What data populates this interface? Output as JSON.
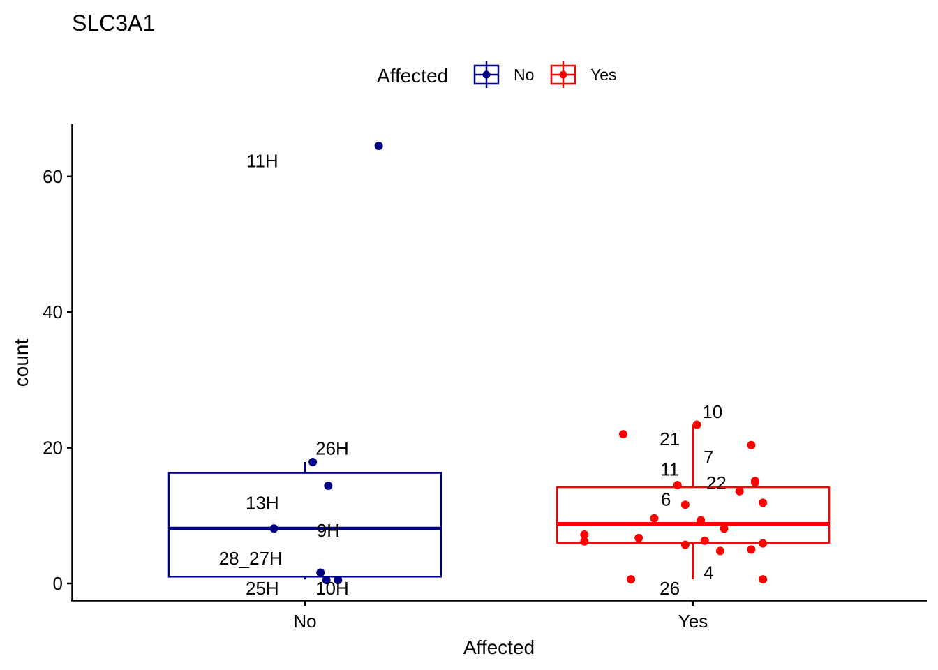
{
  "chart_data": {
    "type": "boxplot",
    "title": "SLC3A1",
    "xlabel": "Affected",
    "ylabel": "count",
    "ylim": [
      -3,
      67.5
    ],
    "yticks": [
      0,
      20,
      40,
      60
    ],
    "categories": [
      "No",
      "Yes"
    ],
    "grid": false,
    "legend": {
      "title": "Affected",
      "position": "top",
      "entries": [
        {
          "label": "No",
          "color": "#000080"
        },
        {
          "label": "Yes",
          "color": "#ff0000"
        }
      ]
    },
    "series": [
      {
        "name": "No",
        "color": "#000080",
        "box": {
          "lower_whisker": 0.6,
          "q1": 1.0,
          "median": 8.1,
          "q3": 16.3,
          "upper_whisker": 17.9
        },
        "points": [
          {
            "x": 1.19,
            "y": 64.5,
            "label": ""
          },
          {
            "x": 1.02,
            "y": 17.9,
            "label": ""
          },
          {
            "x": 1.06,
            "y": 14.4,
            "label": ""
          },
          {
            "x": 0.92,
            "y": 8.1,
            "label": ""
          },
          {
            "x": 1.04,
            "y": 1.6,
            "label": ""
          },
          {
            "x": 1.055,
            "y": 0.5,
            "label": ""
          },
          {
            "x": 1.085,
            "y": 0.5,
            "label": ""
          }
        ],
        "text_labels": [
          {
            "text": "11H",
            "x": 0.89,
            "y": 62.3
          },
          {
            "text": "26H",
            "x": 1.07,
            "y": 19.9
          },
          {
            "text": "13H",
            "x": 0.89,
            "y": 11.9
          },
          {
            "text": "9H",
            "x": 1.06,
            "y": 7.8
          },
          {
            "text": "28_27H",
            "x": 0.86,
            "y": 3.7
          },
          {
            "text": "25H",
            "x": 0.89,
            "y": -0.7
          },
          {
            "text": "10H",
            "x": 1.07,
            "y": -0.7
          }
        ]
      },
      {
        "name": "Yes",
        "color": "#ff0000",
        "box": {
          "lower_whisker": 0.6,
          "q1": 6.0,
          "median": 8.8,
          "q3": 14.2,
          "upper_whisker": 23.4
        },
        "points": [
          {
            "x": 2.01,
            "y": 23.4
          },
          {
            "x": 1.82,
            "y": 22.0
          },
          {
            "x": 2.15,
            "y": 20.4
          },
          {
            "x": 2.16,
            "y": 15.1
          },
          {
            "x": 2.16,
            "y": 14.9
          },
          {
            "x": 1.96,
            "y": 14.5
          },
          {
            "x": 2.12,
            "y": 13.6
          },
          {
            "x": 2.18,
            "y": 11.9
          },
          {
            "x": 1.98,
            "y": 11.6
          },
          {
            "x": 1.9,
            "y": 9.6
          },
          {
            "x": 2.02,
            "y": 9.3
          },
          {
            "x": 2.08,
            "y": 8.1
          },
          {
            "x": 1.72,
            "y": 7.2
          },
          {
            "x": 1.72,
            "y": 6.2
          },
          {
            "x": 1.86,
            "y": 6.7
          },
          {
            "x": 2.03,
            "y": 6.3
          },
          {
            "x": 1.98,
            "y": 5.7
          },
          {
            "x": 2.18,
            "y": 5.9
          },
          {
            "x": 2.15,
            "y": 5.0
          },
          {
            "x": 2.07,
            "y": 4.8
          },
          {
            "x": 1.84,
            "y": 0.6
          },
          {
            "x": 2.18,
            "y": 0.6
          }
        ],
        "text_labels": [
          {
            "text": "10",
            "x": 2.05,
            "y": 25.3
          },
          {
            "text": "21",
            "x": 1.94,
            "y": 21.3
          },
          {
            "text": "7",
            "x": 2.04,
            "y": 18.6
          },
          {
            "text": "11",
            "x": 1.94,
            "y": 16.8
          },
          {
            "text": "22",
            "x": 2.06,
            "y": 14.8
          },
          {
            "text": "6",
            "x": 1.93,
            "y": 12.4
          },
          {
            "text": "4",
            "x": 2.04,
            "y": 1.6
          },
          {
            "text": "26",
            "x": 1.94,
            "y": -0.7
          }
        ]
      }
    ]
  }
}
